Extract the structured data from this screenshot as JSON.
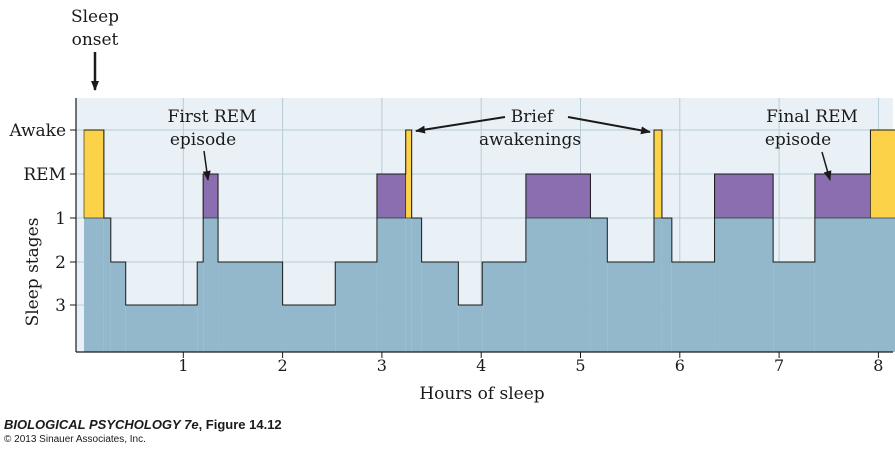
{
  "chart_data": {
    "type": "area",
    "xlabel": "Hours of sleep",
    "ylabel": "Sleep stages",
    "xlim": [
      0,
      8.2
    ],
    "xticks": [
      "1",
      "2",
      "3",
      "4",
      "5",
      "6",
      "7",
      "8"
    ],
    "yticks": [
      "Awake",
      "REM",
      "1",
      "2",
      "3"
    ],
    "grid": true,
    "colors": {
      "background": "#e9f1f6",
      "stage_fill": "#93b8cb",
      "rem": "#8a6eb0",
      "awake": "#fbd248",
      "gridline": "#b8ccd6",
      "line": "#1a1a1a"
    },
    "hypnogram": [
      {
        "start": 0.0,
        "end": 0.2,
        "stage": "Awake"
      },
      {
        "start": 0.2,
        "end": 0.27,
        "stage": "1"
      },
      {
        "start": 0.27,
        "end": 0.42,
        "stage": "2"
      },
      {
        "start": 0.42,
        "end": 1.14,
        "stage": "3"
      },
      {
        "start": 1.14,
        "end": 1.2,
        "stage": "2"
      },
      {
        "start": 1.2,
        "end": 1.35,
        "stage": "REM"
      },
      {
        "start": 1.35,
        "end": 2.0,
        "stage": "2"
      },
      {
        "start": 2.0,
        "end": 2.53,
        "stage": "3"
      },
      {
        "start": 2.53,
        "end": 2.95,
        "stage": "2"
      },
      {
        "start": 2.95,
        "end": 3.24,
        "stage": "REM"
      },
      {
        "start": 3.24,
        "end": 3.3,
        "stage": "Awake"
      },
      {
        "start": 3.3,
        "end": 3.4,
        "stage": "1"
      },
      {
        "start": 3.4,
        "end": 3.77,
        "stage": "2"
      },
      {
        "start": 3.77,
        "end": 4.01,
        "stage": "3"
      },
      {
        "start": 4.01,
        "end": 4.45,
        "stage": "2"
      },
      {
        "start": 4.45,
        "end": 5.1,
        "stage": "REM"
      },
      {
        "start": 5.1,
        "end": 5.27,
        "stage": "1"
      },
      {
        "start": 5.27,
        "end": 5.74,
        "stage": "2"
      },
      {
        "start": 5.74,
        "end": 5.82,
        "stage": "Awake"
      },
      {
        "start": 5.82,
        "end": 5.92,
        "stage": "1"
      },
      {
        "start": 5.92,
        "end": 6.35,
        "stage": "2"
      },
      {
        "start": 6.35,
        "end": 6.94,
        "stage": "REM"
      },
      {
        "start": 6.94,
        "end": 7.36,
        "stage": "2"
      },
      {
        "start": 7.36,
        "end": 7.92,
        "stage": "REM"
      },
      {
        "start": 7.92,
        "end": 8.2,
        "stage": "Awake"
      }
    ],
    "annotations": {
      "sleep_onset": [
        "Sleep",
        "onset"
      ],
      "first_rem": [
        "First REM",
        "episode"
      ],
      "brief_awakenings": [
        "Brief",
        "awakenings"
      ],
      "final_rem": [
        "Final REM",
        "episode"
      ]
    }
  },
  "caption": {
    "book": "BIOLOGICAL PSYCHOLOGY 7e",
    "figure": ", Figure 14.12",
    "copyright": "© 2013 Sinauer Associates, Inc."
  }
}
